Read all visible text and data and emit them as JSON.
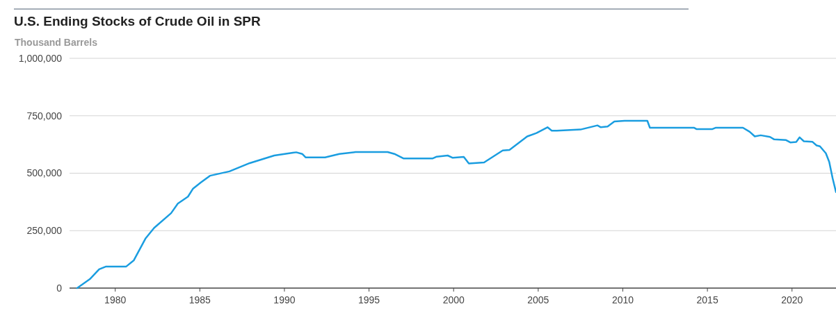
{
  "chart_data": {
    "type": "line",
    "title": "U.S. Ending Stocks of Crude Oil in SPR",
    "ylabel": "Thousand Barrels",
    "x": [
      1977.75,
      1978.5,
      1979.05,
      1979.46,
      1980.65,
      1981.1,
      1981.8,
      1982.3,
      1983.3,
      1983.7,
      1984.3,
      1984.6,
      1985.05,
      1985.6,
      1986.75,
      1987.95,
      1989.4,
      1990.5,
      1990.7,
      1991.05,
      1991.25,
      1992.4,
      1993.25,
      1994.2,
      1996.1,
      1996.5,
      1997.05,
      1998.75,
      1999.0,
      1999.65,
      1999.95,
      2000.6,
      2000.9,
      2001.8,
      2002.9,
      2003.3,
      2004.35,
      2004.9,
      2005.55,
      2005.8,
      2006.1,
      2007.5,
      2008.5,
      2008.7,
      2009.1,
      2009.5,
      2010.1,
      2011.45,
      2011.6,
      2014.2,
      2014.35,
      2015.3,
      2015.5,
      2017.1,
      2017.5,
      2017.8,
      2018.15,
      2018.7,
      2018.95,
      2019.65,
      2019.9,
      2020.25,
      2020.45,
      2020.7,
      2021.2,
      2021.45,
      2021.65,
      2022.0,
      2022.2,
      2022.4,
      2022.6
    ],
    "series": [
      {
        "color": "#1a9de0",
        "values": [
          0,
          39000,
          82000,
          94000,
          94000,
          121000,
          217000,
          262000,
          326000,
          368000,
          398000,
          433000,
          459000,
          489000,
          508000,
          544000,
          577000,
          589000,
          591000,
          584000,
          569000,
          569000,
          584000,
          592000,
          592000,
          584000,
          564000,
          564000,
          572000,
          577000,
          567000,
          571000,
          542000,
          547000,
          599000,
          601000,
          660000,
          675000,
          700000,
          685000,
          685000,
          690000,
          708000,
          700000,
          703000,
          725000,
          728000,
          728000,
          698000,
          698000,
          692000,
          692000,
          698000,
          698000,
          680000,
          660000,
          665000,
          658000,
          647000,
          644000,
          634000,
          636000,
          656000,
          639000,
          637000,
          621000,
          617000,
          587000,
          549000,
          478000,
          418000
        ]
      }
    ],
    "xlim": [
      1977.3,
      2022.6
    ],
    "xticks": [
      1980,
      1985,
      1990,
      1995,
      2000,
      2005,
      2010,
      2015,
      2020
    ],
    "ylim": [
      0,
      1000000
    ],
    "yticks": [
      0,
      {
        "value": 250000,
        "label": "250,000"
      },
      {
        "value": 500000,
        "label": "500,000"
      },
      {
        "value": 750000,
        "label": "750,000"
      },
      {
        "value": 1000000,
        "label": "1,000,000"
      }
    ],
    "grid": "y",
    "marker": "none",
    "line_style": "solid"
  }
}
